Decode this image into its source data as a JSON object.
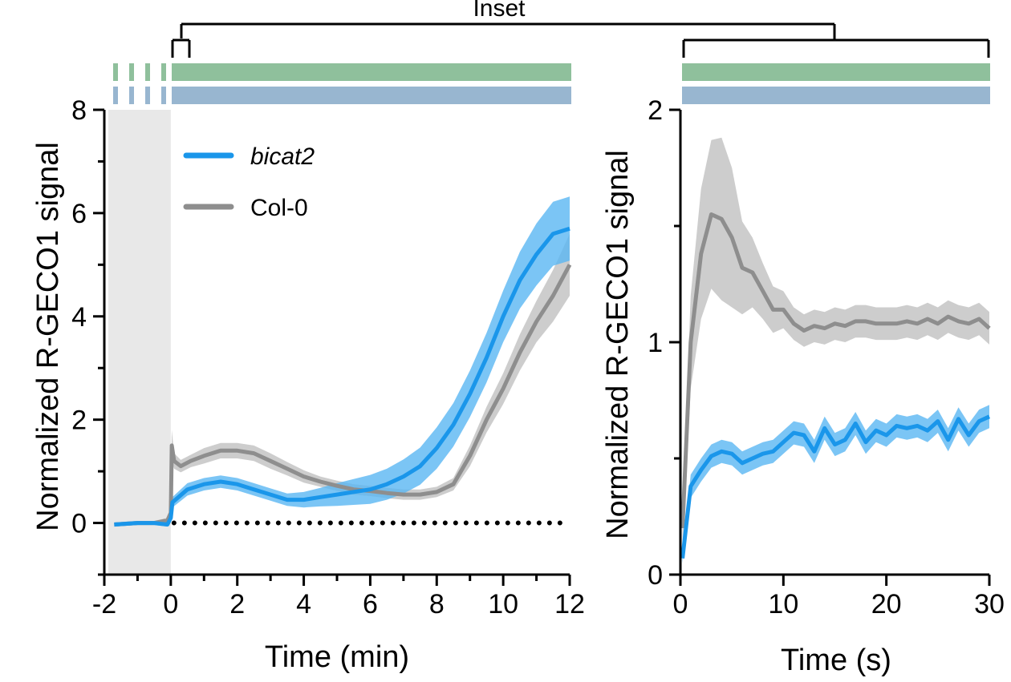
{
  "inset_label": "Inset",
  "colors": {
    "bicat2": "#1a96ea",
    "bicat2_band": "#5ab6f2",
    "col0": "#8e8e8e",
    "col0_band": "#c4c4c4",
    "green_bar": "#8fc09c",
    "blue_bar": "#98b6d0",
    "baseline_shade": "#e8e8e8"
  },
  "chart_data": [
    {
      "type": "line",
      "title": "",
      "xlabel": "Time (min)",
      "ylabel": "Normalized R-GECO1 signal",
      "xlim": [
        -2,
        12
      ],
      "ylim": [
        -1,
        8
      ],
      "xticks": [
        "-2",
        "0",
        "2",
        "4",
        "6",
        "8",
        "10",
        "12"
      ],
      "xtick_values": [
        -2,
        0,
        2,
        4,
        6,
        8,
        10,
        12
      ],
      "yticks": [
        "0",
        "2",
        "4",
        "6",
        "8"
      ],
      "ytick_values": [
        0,
        2,
        4,
        6,
        8
      ],
      "baseline_region": [
        -2,
        0
      ],
      "reference_line_y": 0,
      "legend": [
        "bicat2",
        "Col-0"
      ],
      "series": [
        {
          "name": "bicat2",
          "x": [
            -1.7,
            -1.0,
            -0.5,
            -0.1,
            0.0,
            0.05,
            0.5,
            1.0,
            1.5,
            2.0,
            2.5,
            3.0,
            3.5,
            4.0,
            4.5,
            5.0,
            5.5,
            6.0,
            6.5,
            7.0,
            7.5,
            8.0,
            8.5,
            9.0,
            9.5,
            10.0,
            10.5,
            11.0,
            11.5,
            12.0
          ],
          "y": [
            -0.03,
            0.0,
            0.0,
            -0.03,
            0.1,
            0.4,
            0.65,
            0.75,
            0.8,
            0.75,
            0.65,
            0.55,
            0.45,
            0.45,
            0.5,
            0.55,
            0.6,
            0.65,
            0.75,
            0.9,
            1.1,
            1.45,
            1.9,
            2.5,
            3.2,
            4.0,
            4.7,
            5.2,
            5.6,
            5.7
          ],
          "err": [
            0.04,
            0.04,
            0.04,
            0.04,
            0.08,
            0.1,
            0.12,
            0.12,
            0.12,
            0.12,
            0.12,
            0.12,
            0.12,
            0.15,
            0.18,
            0.22,
            0.25,
            0.28,
            0.3,
            0.33,
            0.36,
            0.4,
            0.42,
            0.45,
            0.48,
            0.5,
            0.55,
            0.6,
            0.62,
            0.62
          ]
        },
        {
          "name": "Col-0",
          "x": [
            -1.7,
            -1.0,
            -0.5,
            -0.1,
            0.0,
            0.03,
            0.1,
            0.3,
            0.6,
            1.0,
            1.5,
            2.0,
            2.5,
            3.0,
            3.5,
            4.0,
            4.5,
            5.0,
            5.5,
            6.0,
            6.5,
            7.0,
            7.5,
            8.0,
            8.5,
            9.0,
            9.5,
            10.0,
            10.5,
            11.0,
            11.5,
            12.0
          ],
          "y": [
            -0.03,
            0.0,
            0.0,
            0.05,
            0.2,
            1.5,
            1.2,
            1.1,
            1.2,
            1.3,
            1.4,
            1.4,
            1.35,
            1.2,
            1.05,
            0.9,
            0.8,
            0.72,
            0.65,
            0.62,
            0.58,
            0.55,
            0.55,
            0.6,
            0.75,
            1.3,
            2.0,
            2.6,
            3.3,
            3.9,
            4.4,
            5.0
          ],
          "err": [
            0.04,
            0.04,
            0.04,
            0.05,
            0.1,
            0.3,
            0.15,
            0.12,
            0.12,
            0.15,
            0.15,
            0.15,
            0.15,
            0.15,
            0.13,
            0.12,
            0.1,
            0.1,
            0.1,
            0.1,
            0.1,
            0.1,
            0.1,
            0.1,
            0.12,
            0.2,
            0.25,
            0.3,
            0.35,
            0.4,
            0.5,
            0.6
          ]
        }
      ]
    },
    {
      "type": "line",
      "title": "",
      "xlabel": "Time (s)",
      "ylabel": "Normalized R-GECO1 signal",
      "xlim": [
        0,
        30
      ],
      "ylim": [
        0,
        2
      ],
      "xticks": [
        "0",
        "10",
        "20",
        "30"
      ],
      "xtick_values": [
        0,
        10,
        20,
        30
      ],
      "yticks": [
        "0",
        "1",
        "2"
      ],
      "ytick_values": [
        0,
        1,
        2
      ],
      "minor_ytick_values": [
        0.5,
        1.5
      ],
      "series": [
        {
          "name": "bicat2",
          "x": [
            0.2,
            1,
            2,
            3,
            4,
            5,
            6,
            7,
            8,
            9,
            10,
            11,
            12,
            13,
            14,
            15,
            16,
            17,
            18,
            19,
            20,
            21,
            22,
            23,
            24,
            25,
            26,
            27,
            28,
            29,
            30
          ],
          "y": [
            0.07,
            0.38,
            0.45,
            0.51,
            0.53,
            0.52,
            0.48,
            0.5,
            0.52,
            0.53,
            0.57,
            0.61,
            0.6,
            0.53,
            0.63,
            0.56,
            0.58,
            0.65,
            0.57,
            0.62,
            0.6,
            0.64,
            0.63,
            0.64,
            0.62,
            0.66,
            0.58,
            0.67,
            0.6,
            0.66,
            0.68
          ],
          "err": [
            0.02,
            0.05,
            0.05,
            0.05,
            0.05,
            0.05,
            0.05,
            0.05,
            0.05,
            0.05,
            0.05,
            0.05,
            0.05,
            0.05,
            0.05,
            0.05,
            0.05,
            0.05,
            0.05,
            0.05,
            0.05,
            0.05,
            0.05,
            0.05,
            0.05,
            0.05,
            0.05,
            0.05,
            0.05,
            0.05,
            0.05
          ]
        },
        {
          "name": "Col-0",
          "x": [
            0.2,
            1,
            2,
            3,
            4,
            5,
            6,
            7,
            8,
            9,
            10,
            11,
            12,
            13,
            14,
            15,
            16,
            17,
            18,
            19,
            20,
            21,
            22,
            23,
            24,
            25,
            26,
            27,
            28,
            29,
            30
          ],
          "y": [
            0.2,
            1.0,
            1.38,
            1.55,
            1.53,
            1.45,
            1.32,
            1.3,
            1.22,
            1.14,
            1.14,
            1.08,
            1.05,
            1.07,
            1.06,
            1.08,
            1.07,
            1.09,
            1.09,
            1.08,
            1.08,
            1.08,
            1.09,
            1.08,
            1.1,
            1.08,
            1.11,
            1.09,
            1.08,
            1.1,
            1.06
          ],
          "err": [
            0.1,
            0.2,
            0.28,
            0.32,
            0.35,
            0.3,
            0.2,
            0.15,
            0.12,
            0.1,
            0.08,
            0.07,
            0.07,
            0.07,
            0.07,
            0.07,
            0.07,
            0.07,
            0.07,
            0.07,
            0.07,
            0.07,
            0.07,
            0.07,
            0.07,
            0.07,
            0.07,
            0.07,
            0.07,
            0.07,
            0.07
          ]
        }
      ]
    }
  ]
}
